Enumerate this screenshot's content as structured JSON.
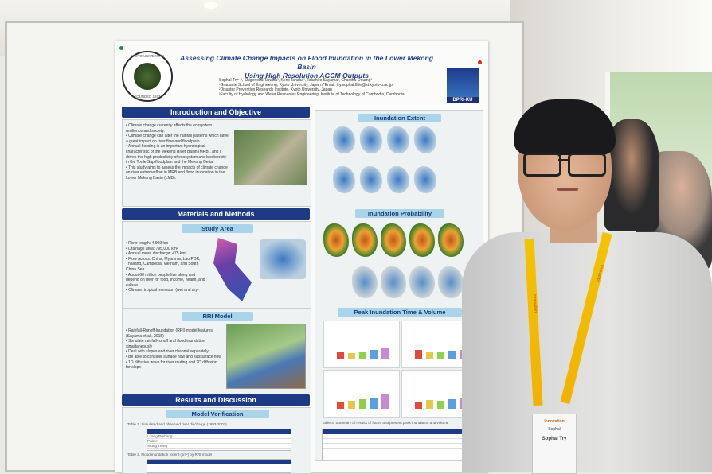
{
  "poster": {
    "title_line1": "Assessing Climate Change Impacts on Flood Inundation in the Lower Mekong Basin",
    "title_line2": "Using High Resolution AGCM Outputs",
    "authors": "Sophal Try¹·², Shigenobu Tanaka², Kenji Tanaka², Takahiro Sayama², Chantha Oeurng³",
    "affiliations": [
      "¹Graduate School of Engineering, Kyoto University, Japan (*Email: try.sophal.85e@st.kyoto-u.ac.jp)",
      "²Disaster Prevention Research Institute, Kyoto University, Japan",
      "³Faculty of Hydrology and Water Resources Engineering, Institute of Technology of Cambodia, Cambodia"
    ],
    "logo_left_top": "KYOTO UNIVERSITY",
    "logo_left_bottom": "FOUNDED 1897",
    "logo_right": "DPRI-KU",
    "sections": {
      "intro": "Introduction and Objective",
      "materials": "Materials and Methods",
      "study_area": "Study Area",
      "rri": "RRI Model",
      "results": "Results and Discussion",
      "verification": "Model Verification",
      "extent": "Inundation Extent",
      "probability": "Inundation Probability",
      "peak": "Peak Inundation Time & Volume"
    },
    "intro_bullets": [
      "Climate change currently affects the ecosystem resilience and society.",
      "Climate change can alter the rainfall patterns which have a great impact on river flow and floodplain.",
      "Annual flooding is an important hydrological characteristic of the Mekong River Basin (MRB), and it drives the high productivity of ecosystem and biodiversity in the Tonle Sap floodplain and the Mekong Delta.",
      "This study aims to assess the impacts of climate change on river extreme flow in MRB and flood inundation in the Lower Mekong Basin (LMB)."
    ],
    "study_bullets": [
      "River length: 4,909 km",
      "Drainage area: 795,000 km²",
      "Annual mean discharge: 475 km³",
      "Flow across: China, Myanmar, Lao PDR, Thailand, Cambodia, Vietnam, and South China Sea",
      "About 60 million people live along and depend on river for food, income, health, and culture",
      "Climate: tropical monsoon (wet and dry)"
    ],
    "rri_bullets": [
      "Rainfall-Runoff-Inundation (RRI) model features (Sayama et al., 2015)",
      "Simulate rainfall-runoff and flood inundation simultaneously",
      "Deal with slopes and river channel separately",
      "Be able to consider surface flow and subsurface flow",
      "1D diffusive wave for river routing and 2D diffusion for slope"
    ],
    "table1_caption": "Table 1. Simulated and observed river discharge (1993-2007)",
    "table1_rows": [
      "Luang Prabang",
      "Pakse",
      "Stung Treng"
    ],
    "table2_caption": "Table 2. Flood inundation extent (km²) by RRI model",
    "table3_caption": "Table 3. Summary of results of future and present peak inundation and volume"
  },
  "badge": {
    "event": "Innovation",
    "name_top": "Sophal",
    "name_bottom": "Sophal Try"
  },
  "lanyard_text": "Innovation",
  "colors": {
    "poster_header": "#1e3a84",
    "poster_subheader": "#a9d4ea",
    "lanyard": "#f3c300"
  }
}
